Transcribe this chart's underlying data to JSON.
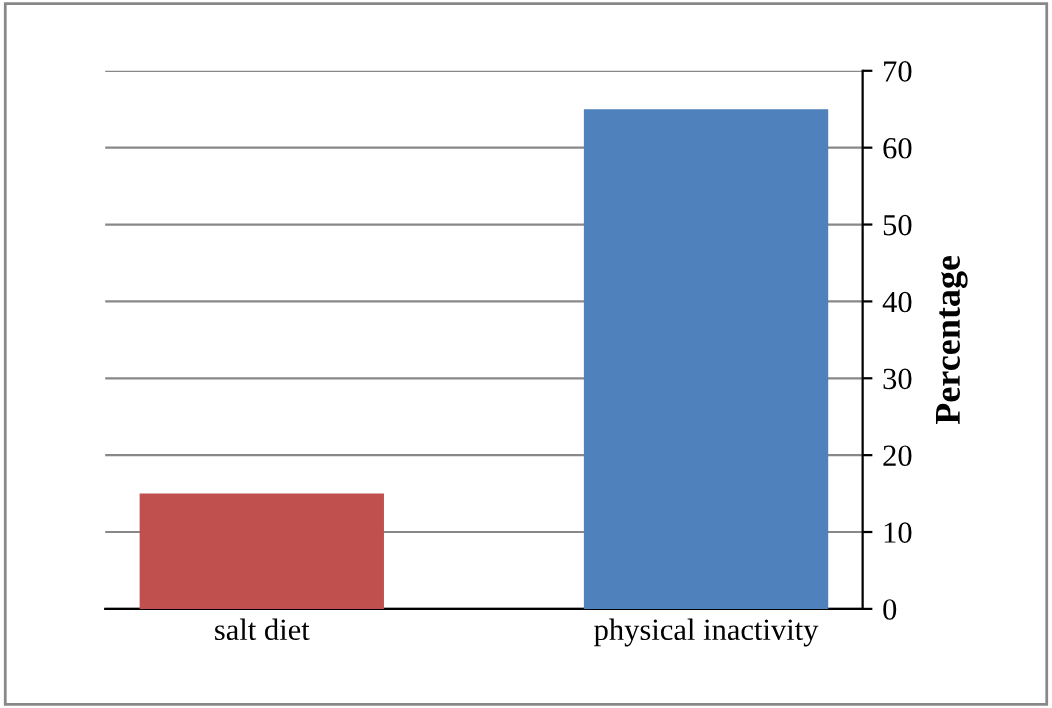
{
  "chart_data": {
    "type": "bar",
    "categories": [
      "salt diet",
      "physical inactivity"
    ],
    "values": [
      15,
      65
    ],
    "colors": [
      "#c0504d",
      "#4f81bd"
    ],
    "ylabel": "Percentage",
    "ylim": [
      0,
      70
    ],
    "yticks": [
      0,
      10,
      20,
      30,
      40,
      50,
      60,
      70
    ],
    "grid": "y"
  }
}
